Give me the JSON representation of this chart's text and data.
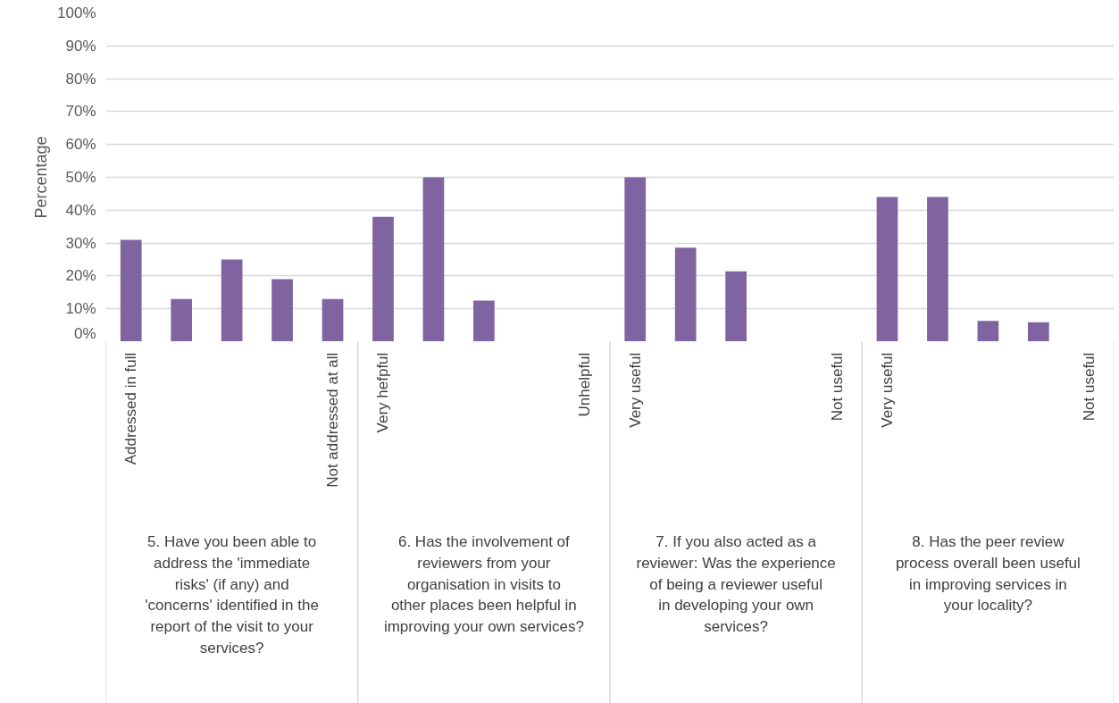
{
  "chart_data": {
    "type": "bar",
    "ylabel": "Percentage",
    "categories": [
      "Addressed in full",
      null,
      null,
      null,
      "Not addressed at all",
      "Very hefpful",
      null,
      null,
      null,
      "Unhelpful",
      "Very useful",
      null,
      null,
      null,
      "Not useful",
      "Very useful",
      null,
      null,
      null,
      "Not useful"
    ],
    "values": [
      31,
      13,
      25,
      19,
      13,
      38,
      50,
      12.5,
      0,
      0,
      50,
      28.6,
      21.4,
      0,
      0,
      44,
      44,
      6.3,
      5.9,
      0
    ],
    "color": "#8064a2",
    "ylim": [
      0,
      100
    ],
    "yticks": [
      {
        "value": 0,
        "label": "0%"
      },
      {
        "value": 10,
        "label": "10%"
      },
      {
        "value": 20,
        "label": "20%"
      },
      {
        "value": 30,
        "label": "30%"
      },
      {
        "value": 40,
        "label": "40%"
      },
      {
        "value": 50,
        "label": "50%"
      },
      {
        "value": 60,
        "label": "60%"
      },
      {
        "value": 70,
        "label": "70%"
      },
      {
        "value": 80,
        "label": "80%"
      },
      {
        "value": 90,
        "label": "90%"
      },
      {
        "value": 100,
        "label": "100%"
      }
    ],
    "grid": "y",
    "annotations": [
      "5. Have you been able to address the 'immediate risks' (if any) and 'concerns' identified in the report of the visit to your services?",
      "6. Has the involvement of reviewers from your organisation in visits to other places been helpful in improving your own services?",
      "7. If you also acted as a reviewer: Was the experience of being a reviewer useful in developing your own services?",
      "8. Has the peer review process overall been useful in improving services in your locality?"
    ]
  }
}
